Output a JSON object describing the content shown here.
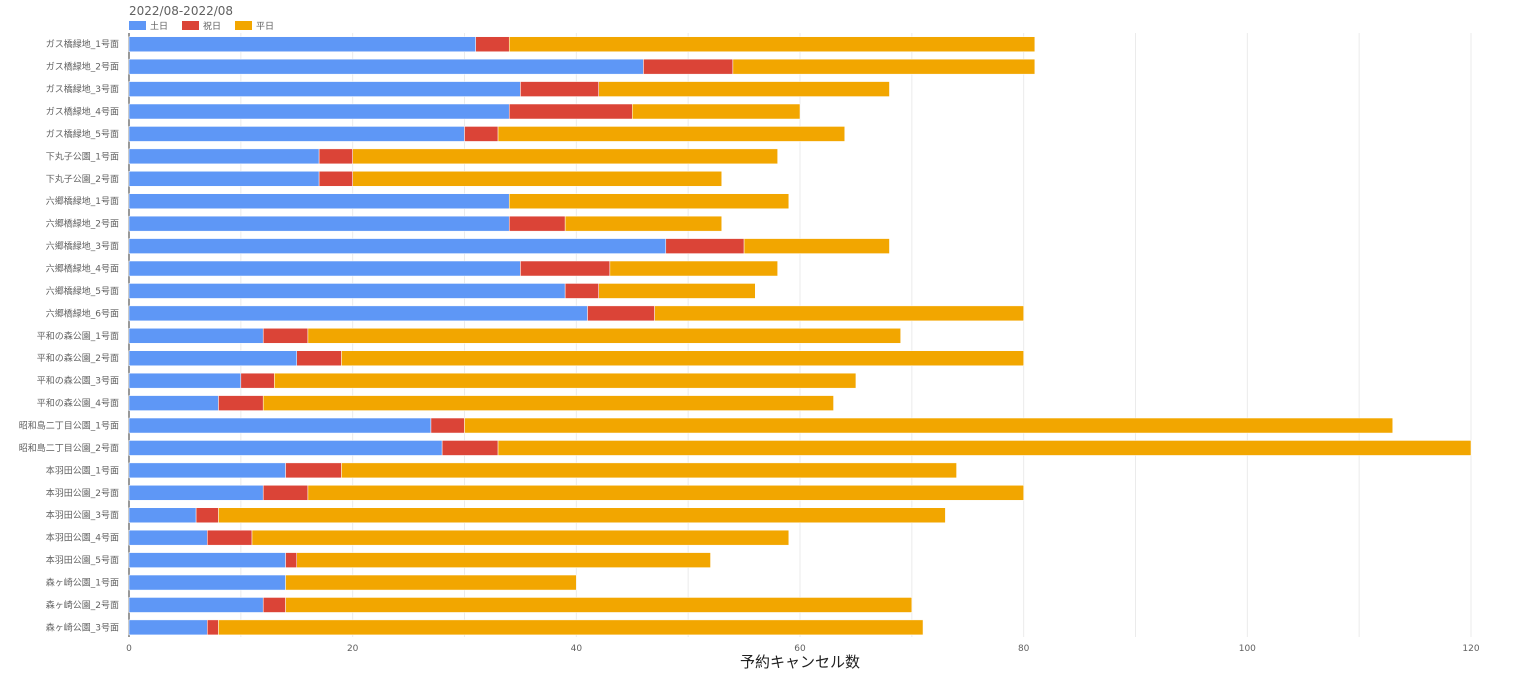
{
  "chart_data": {
    "type": "bar",
    "orientation": "horizontal",
    "stacked": true,
    "title": "2022/08-2022/08",
    "xlabel": "予約キャンセル数",
    "ylabel": "",
    "xlim": [
      0,
      120
    ],
    "xticks": [
      0,
      20,
      40,
      60,
      80,
      100,
      120
    ],
    "grid": true,
    "legend_position": "top-left",
    "categories": [
      "ガス橋緑地_1号面",
      "ガス橋緑地_2号面",
      "ガス橋緑地_3号面",
      "ガス橋緑地_4号面",
      "ガス橋緑地_5号面",
      "下丸子公園_1号面",
      "下丸子公園_2号面",
      "六郷橋緑地_1号面",
      "六郷橋緑地_2号面",
      "六郷橋緑地_3号面",
      "六郷橋緑地_4号面",
      "六郷橋緑地_5号面",
      "六郷橋緑地_6号面",
      "平和の森公園_1号面",
      "平和の森公園_2号面",
      "平和の森公園_3号面",
      "平和の森公園_4号面",
      "昭和島二丁目公園_1号面",
      "昭和島二丁目公園_2号面",
      "本羽田公園_1号面",
      "本羽田公園_2号面",
      "本羽田公園_3号面",
      "本羽田公園_4号面",
      "本羽田公園_5号面",
      "森ヶ崎公園_1号面",
      "森ヶ崎公園_2号面",
      "森ヶ崎公園_3号面"
    ],
    "series": [
      {
        "name": "土日",
        "color": "#5e97f6",
        "values": [
          31,
          46,
          35,
          34,
          30,
          17,
          17,
          34,
          34,
          48,
          35,
          39,
          41,
          12,
          15,
          10,
          8,
          27,
          28,
          14,
          12,
          6,
          7,
          14,
          14,
          12,
          7
        ]
      },
      {
        "name": "祝日",
        "color": "#db4437",
        "values": [
          3,
          8,
          7,
          11,
          3,
          3,
          3,
          0,
          5,
          7,
          8,
          3,
          6,
          4,
          4,
          3,
          4,
          3,
          5,
          5,
          4,
          2,
          4,
          1,
          0,
          2,
          1
        ]
      },
      {
        "name": "平日",
        "color": "#f2a600",
        "values": [
          47,
          27,
          26,
          15,
          31,
          38,
          33,
          25,
          14,
          13,
          15,
          14,
          33,
          53,
          61,
          52,
          51,
          83,
          87,
          55,
          64,
          65,
          48,
          37,
          26,
          56,
          63
        ]
      }
    ]
  }
}
